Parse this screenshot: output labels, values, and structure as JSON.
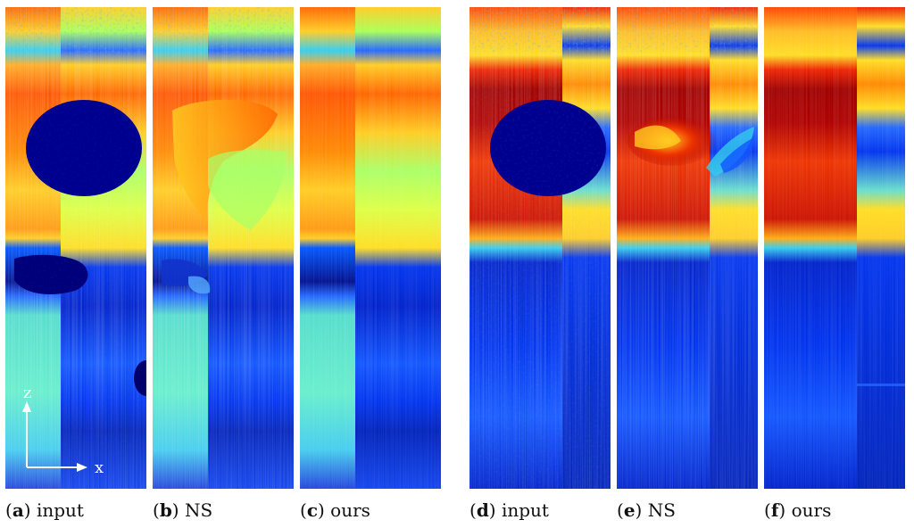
{
  "figure": {
    "panels": [
      {
        "letter": "a",
        "label": "input"
      },
      {
        "letter": "b",
        "label": "NS"
      },
      {
        "letter": "c",
        "label": "ours"
      },
      {
        "letter": "d",
        "label": "input"
      },
      {
        "letter": "e",
        "label": "NS"
      },
      {
        "letter": "f",
        "label": "ours"
      }
    ],
    "axes": {
      "z_label": "z",
      "x_label": "x"
    },
    "colormap": {
      "deep_blue": "#00008f",
      "blue": "#0022ee",
      "cyan": "#33ccee",
      "green_yellow": "#aaff55",
      "yellow": "#ffee22",
      "orange": "#ff8800",
      "red": "#ee2200",
      "dark_red": "#990000"
    }
  }
}
